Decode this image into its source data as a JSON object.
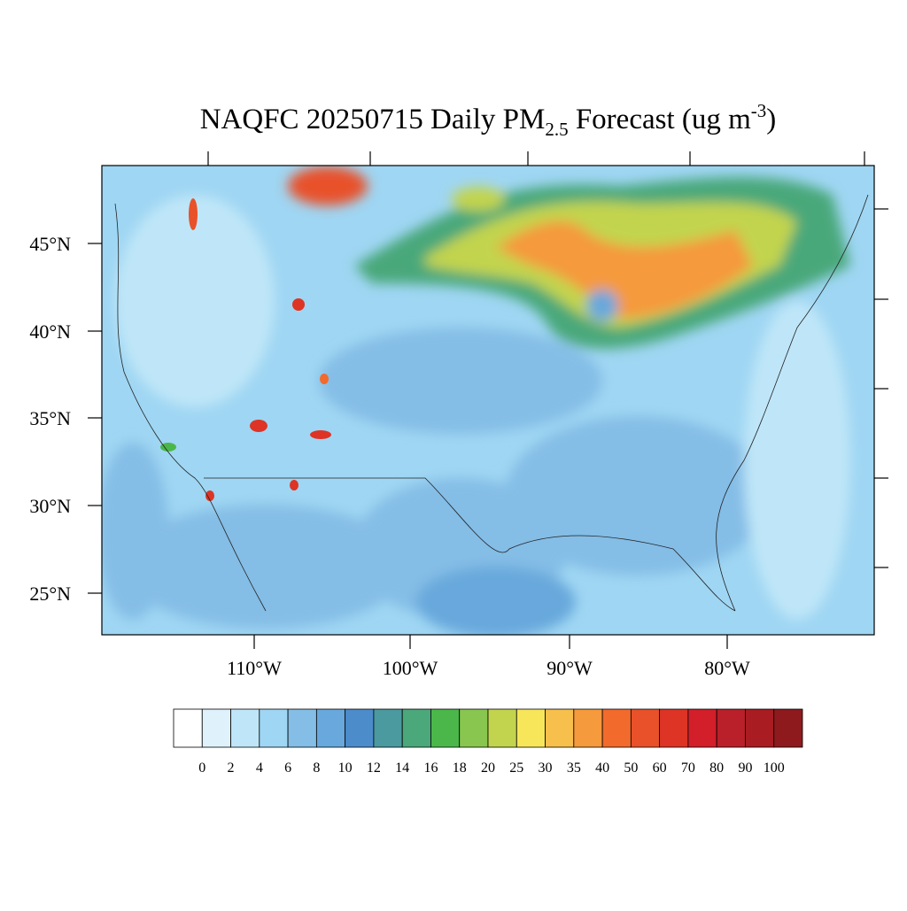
{
  "map": {
    "title": {
      "main": "NAQFC 20250715 Daily PM",
      "subscript": "2.5",
      "middle": " Forecast (ug m",
      "superscript": "-3",
      "end": ")"
    },
    "lat_labels": [
      "45°N",
      "40°N",
      "35°N",
      "30°N",
      "25°N"
    ],
    "lon_labels": [
      "110°W",
      "100°W",
      "90°W",
      "80°W"
    ],
    "colorbar": {
      "labels": [
        0,
        2,
        4,
        6,
        8,
        10,
        12,
        14,
        16,
        18,
        20,
        25,
        30,
        35,
        40,
        50,
        60,
        70,
        80,
        90,
        100
      ],
      "colors": [
        "#ffffff",
        "#dff1fb",
        "#bfe6f8",
        "#9fd6f3",
        "#84bde6",
        "#68a8dc",
        "#4c8ccb",
        "#4a9aa0",
        "#4aa87a",
        "#4bb74a",
        "#88c64f",
        "#c2d44e",
        "#f7e65a",
        "#f7bf4b",
        "#f59a3d",
        "#f26a2c",
        "#e8512a",
        "#dd3426",
        "#d21f2a",
        "#b9202a",
        "#a81c22",
        "#8e1a1e"
      ]
    }
  }
}
